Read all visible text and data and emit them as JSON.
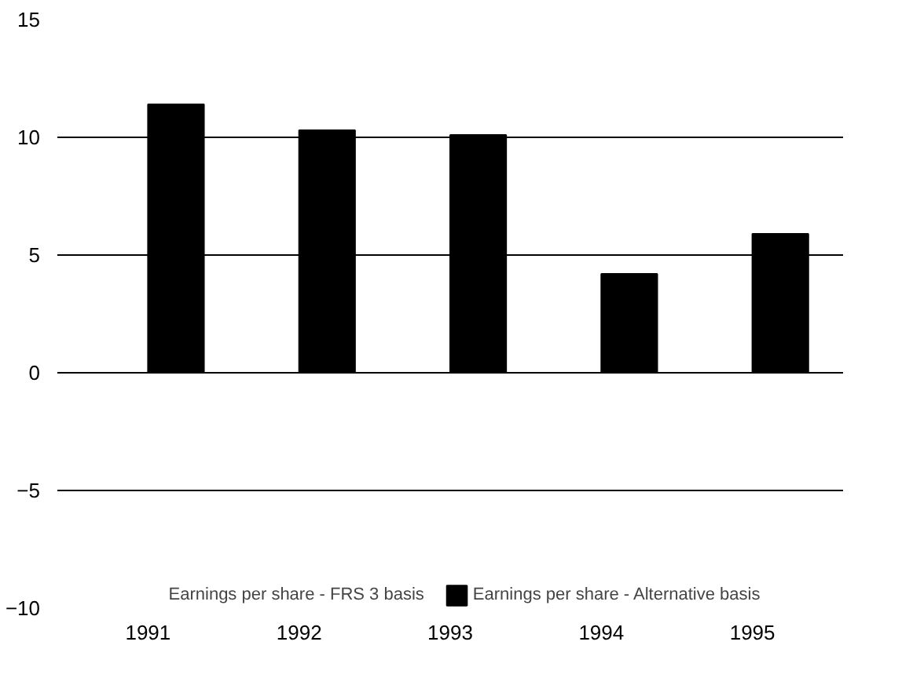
{
  "chart_data": {
    "type": "bar",
    "categories": [
      "1991",
      "1992",
      "1993",
      "1994",
      "1995"
    ],
    "series": [
      {
        "name": "Earnings per share - FRS 3 basis",
        "values": [
          null,
          null,
          null,
          null,
          null
        ]
      },
      {
        "name": "Earnings per share - Alternative basis",
        "color": "#000000",
        "values": [
          11.4,
          10.3,
          10.1,
          4.2,
          5.9
        ]
      }
    ],
    "ylim": [
      -10,
      15
    ],
    "yticks": [
      -10,
      -5,
      0,
      5,
      10,
      15
    ],
    "grid": "y",
    "legend": "bottom"
  }
}
